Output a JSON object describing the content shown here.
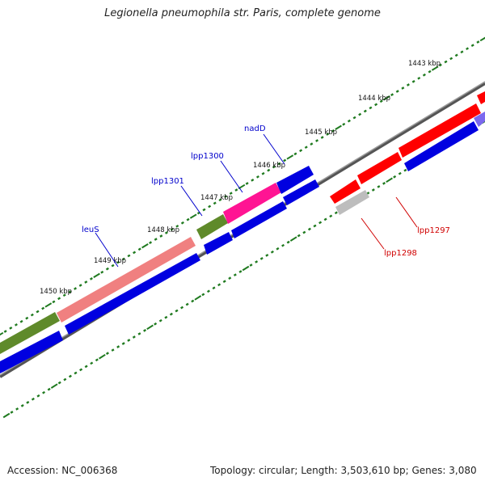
{
  "title": "Legionella pneumophila str. Paris, complete genome",
  "accession": "Accession: NC_006368",
  "summary": "Topology: circular; Length: 3,503,610 bp; Genes: 3,080",
  "colors": {
    "backbone": "#7a7a7a",
    "tick": "#1f7a1f",
    "forward_label": "#0000cc",
    "reverse_label": "#d00000",
    "blue": "#0000e0",
    "red": "#ff0000",
    "pink": "#f08080",
    "olive": "#5f8a2a",
    "magenta": "#ff1493",
    "purple": "#7b68ee",
    "grey": "#bdbdbd"
  },
  "scale_labels": [
    "1443 kbp",
    "1444 kbp",
    "1445 kbp",
    "1446 kbp",
    "1447 kbp",
    "1448 kbp",
    "1449 kbp",
    "1450 kbp"
  ],
  "gene_labels": {
    "forward": [
      "nadD",
      "lpp1300",
      "lpp1301",
      "leuS"
    ],
    "reverse": [
      "lpp1297",
      "lpp1298"
    ]
  }
}
